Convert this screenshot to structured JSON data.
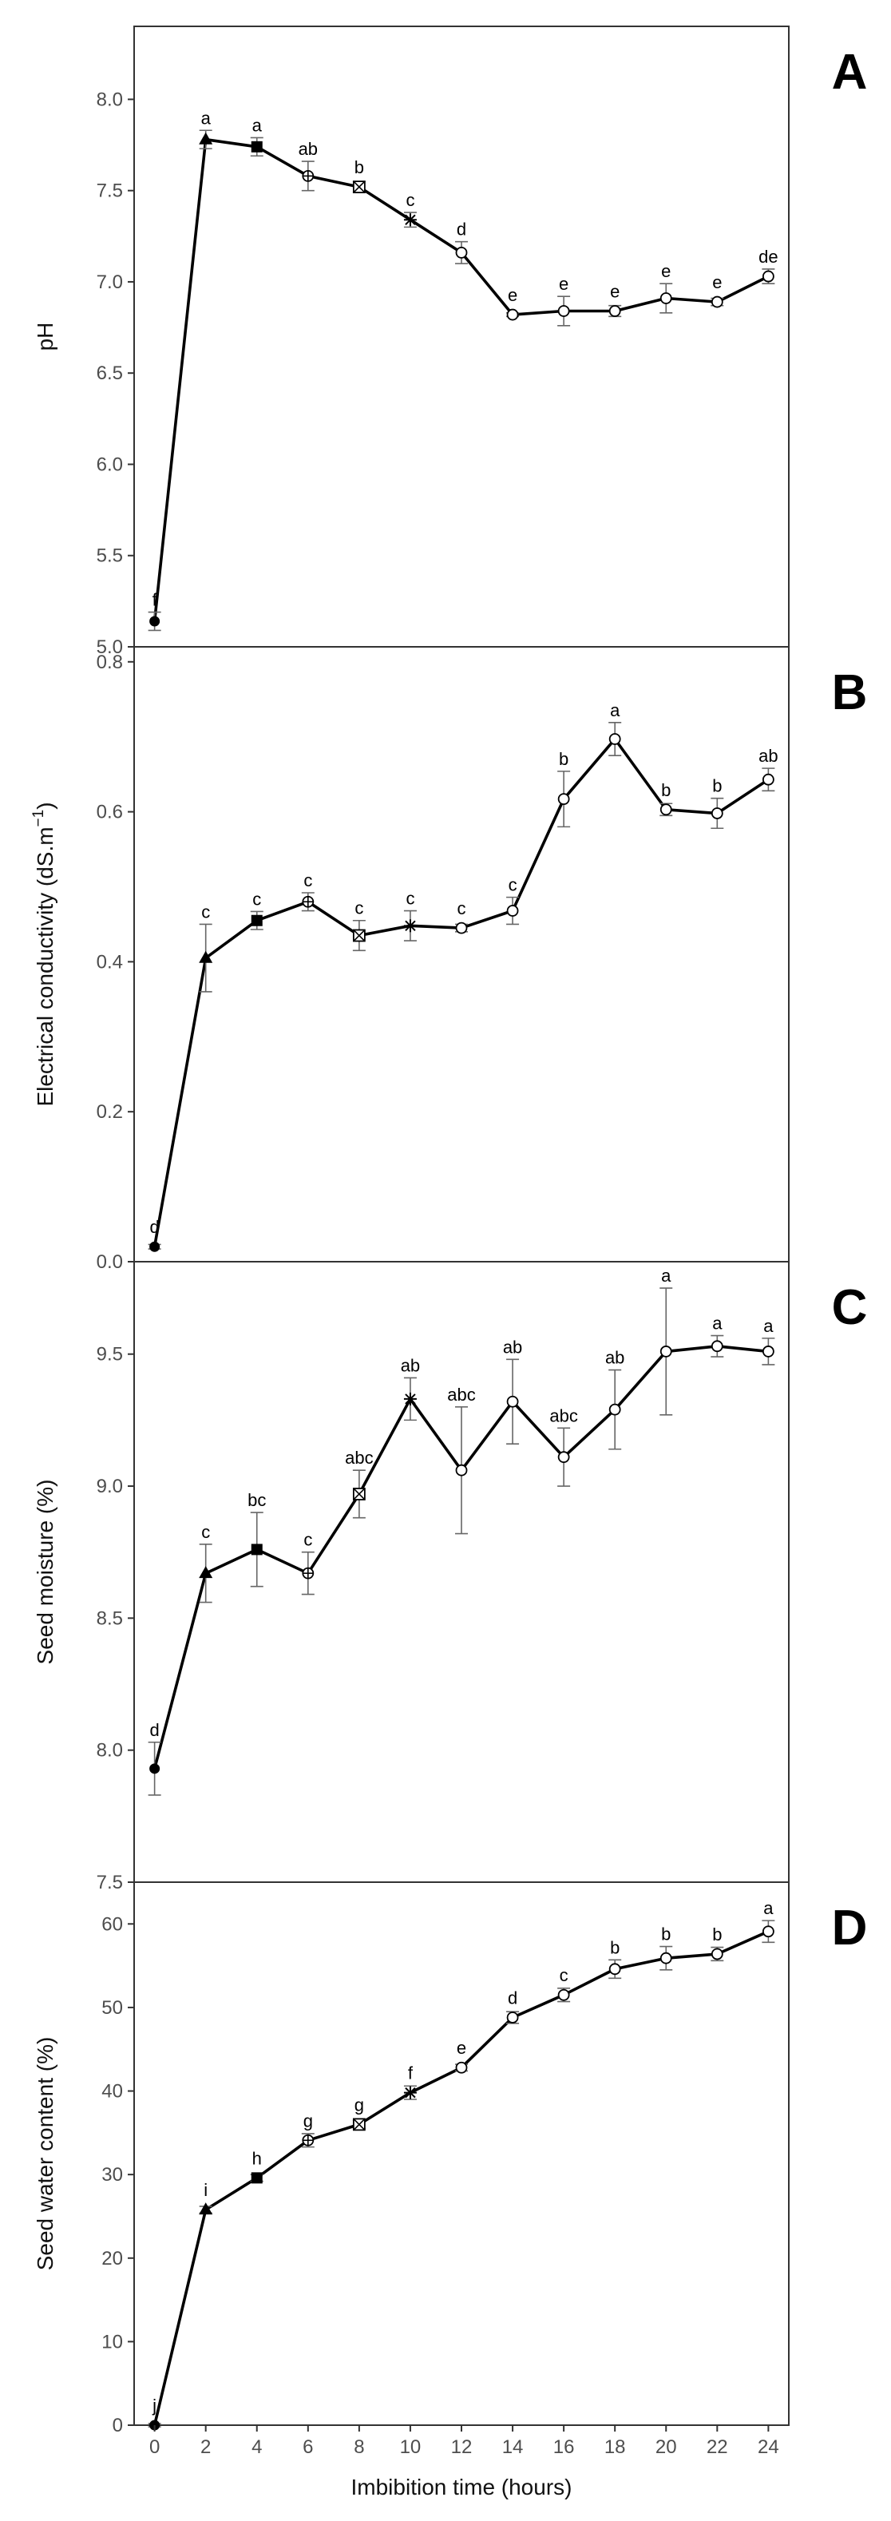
{
  "chart_data": [
    {
      "type": "line",
      "panel": "A",
      "ylabel": "pH",
      "xlabel": "",
      "ylim": [
        5.0,
        8.4
      ],
      "yticks": [
        5.0,
        5.5,
        6.0,
        6.5,
        7.0,
        7.5,
        8.0
      ],
      "ytick_labels": [
        "5.0",
        "5.5",
        "6.0",
        "6.5",
        "7.0",
        "7.5",
        "8.0"
      ],
      "x": [
        0,
        2,
        4,
        6,
        8,
        10,
        12,
        14,
        16,
        18,
        20,
        22,
        24
      ],
      "values": [
        5.14,
        7.78,
        7.74,
        7.58,
        7.52,
        7.34,
        7.16,
        6.82,
        6.84,
        6.84,
        6.91,
        6.89,
        7.03
      ],
      "errors": [
        0.05,
        0.05,
        0.05,
        0.08,
        0.03,
        0.04,
        0.06,
        0.01,
        0.08,
        0.03,
        0.08,
        0.02,
        0.04
      ],
      "markers": [
        "circle-filled",
        "triangle-filled",
        "square-filled",
        "circle-plus",
        "square-x",
        "star",
        "circle-open",
        "circle-open",
        "circle-open",
        "circle-open",
        "circle-open",
        "circle-open",
        "circle-open"
      ],
      "labels": [
        "f",
        "a",
        "a",
        "ab",
        "b",
        "c",
        "d",
        "e",
        "e",
        "e",
        "e",
        "e",
        "de"
      ],
      "grid": false
    },
    {
      "type": "line",
      "panel": "B",
      "ylabel": "Electrical conductivity (dS.m",
      "ylabel_sup": "−1",
      "ylabel_end": ")",
      "xlabel": "",
      "ylim": [
        0.0,
        0.82
      ],
      "yticks": [
        0.0,
        0.2,
        0.4,
        0.6,
        0.8
      ],
      "ytick_labels": [
        "0.0",
        "0.2",
        "0.4",
        "0.6",
        "0.8"
      ],
      "x": [
        0,
        2,
        4,
        6,
        8,
        10,
        12,
        14,
        16,
        18,
        20,
        22,
        24
      ],
      "values": [
        0.02,
        0.405,
        0.455,
        0.48,
        0.435,
        0.448,
        0.445,
        0.468,
        0.617,
        0.697,
        0.603,
        0.598,
        0.643
      ],
      "errors": [
        0.003,
        0.045,
        0.012,
        0.012,
        0.02,
        0.02,
        0.005,
        0.018,
        0.037,
        0.022,
        0.008,
        0.02,
        0.015
      ],
      "markers": [
        "circle-filled",
        "triangle-filled",
        "square-filled",
        "circle-plus",
        "square-x",
        "star",
        "circle-open",
        "circle-open",
        "circle-open",
        "circle-open",
        "circle-open",
        "circle-open",
        "circle-open"
      ],
      "labels": [
        "d",
        "c",
        "c",
        "c",
        "c",
        "c",
        "c",
        "c",
        "b",
        "a",
        "b",
        "b",
        "ab"
      ],
      "grid": false
    },
    {
      "type": "line",
      "panel": "C",
      "ylabel": "Seed moisture (%)",
      "xlabel": "",
      "ylim": [
        7.5,
        9.85
      ],
      "yticks": [
        7.5,
        8.0,
        8.5,
        9.0,
        9.5
      ],
      "ytick_labels": [
        "7.5",
        "8.0",
        "8.5",
        "9.0",
        "9.5"
      ],
      "x": [
        0,
        2,
        4,
        6,
        8,
        10,
        12,
        14,
        16,
        18,
        20,
        22,
        24
      ],
      "values": [
        7.93,
        8.67,
        8.76,
        8.67,
        8.97,
        9.33,
        9.06,
        9.32,
        9.11,
        9.29,
        9.51,
        9.53,
        9.51
      ],
      "errors": [
        0.1,
        0.11,
        0.14,
        0.08,
        0.09,
        0.08,
        0.24,
        0.16,
        0.11,
        0.15,
        0.24,
        0.04,
        0.05
      ],
      "markers": [
        "circle-filled",
        "triangle-filled",
        "square-filled",
        "circle-plus",
        "square-x",
        "star",
        "circle-open",
        "circle-open",
        "circle-open",
        "circle-open",
        "circle-open",
        "circle-open",
        "circle-open"
      ],
      "labels": [
        "d",
        "c",
        "bc",
        "c",
        "abc",
        "ab",
        "abc",
        "ab",
        "abc",
        "ab",
        "a",
        "a",
        "a"
      ],
      "grid": false
    },
    {
      "type": "line",
      "panel": "D",
      "ylabel": "Seed water content (%)",
      "xlabel": "Imbibition time (hours)",
      "ylim": [
        0,
        65
      ],
      "yticks": [
        0,
        10,
        20,
        30,
        40,
        50,
        60
      ],
      "ytick_labels": [
        "0",
        "10",
        "20",
        "30",
        "40",
        "50",
        "60"
      ],
      "xticks": [
        0,
        2,
        4,
        6,
        8,
        10,
        12,
        14,
        16,
        18,
        20,
        22,
        24
      ],
      "xtick_labels": [
        "0",
        "2",
        "4",
        "6",
        "8",
        "10",
        "12",
        "14",
        "16",
        "18",
        "20",
        "22",
        "24"
      ],
      "x": [
        0,
        2,
        4,
        6,
        8,
        10,
        12,
        14,
        16,
        18,
        20,
        22,
        24
      ],
      "values": [
        0.0,
        25.8,
        29.6,
        34.1,
        36.0,
        39.8,
        42.8,
        48.8,
        51.5,
        54.6,
        55.9,
        56.4,
        59.1
      ],
      "errors": [
        0.2,
        0.4,
        0.4,
        0.8,
        0.5,
        0.8,
        0.4,
        0.7,
        0.8,
        1.1,
        1.4,
        0.8,
        1.3
      ],
      "markers": [
        "circle-filled",
        "triangle-filled",
        "square-filled",
        "circle-plus",
        "square-x",
        "star",
        "circle-open",
        "circle-open",
        "circle-open",
        "circle-open",
        "circle-open",
        "circle-open",
        "circle-open"
      ],
      "labels": [
        "j",
        "i",
        "h",
        "g",
        "g",
        "f",
        "e",
        "d",
        "c",
        "b",
        "b",
        "b",
        "a"
      ],
      "grid": false
    }
  ]
}
